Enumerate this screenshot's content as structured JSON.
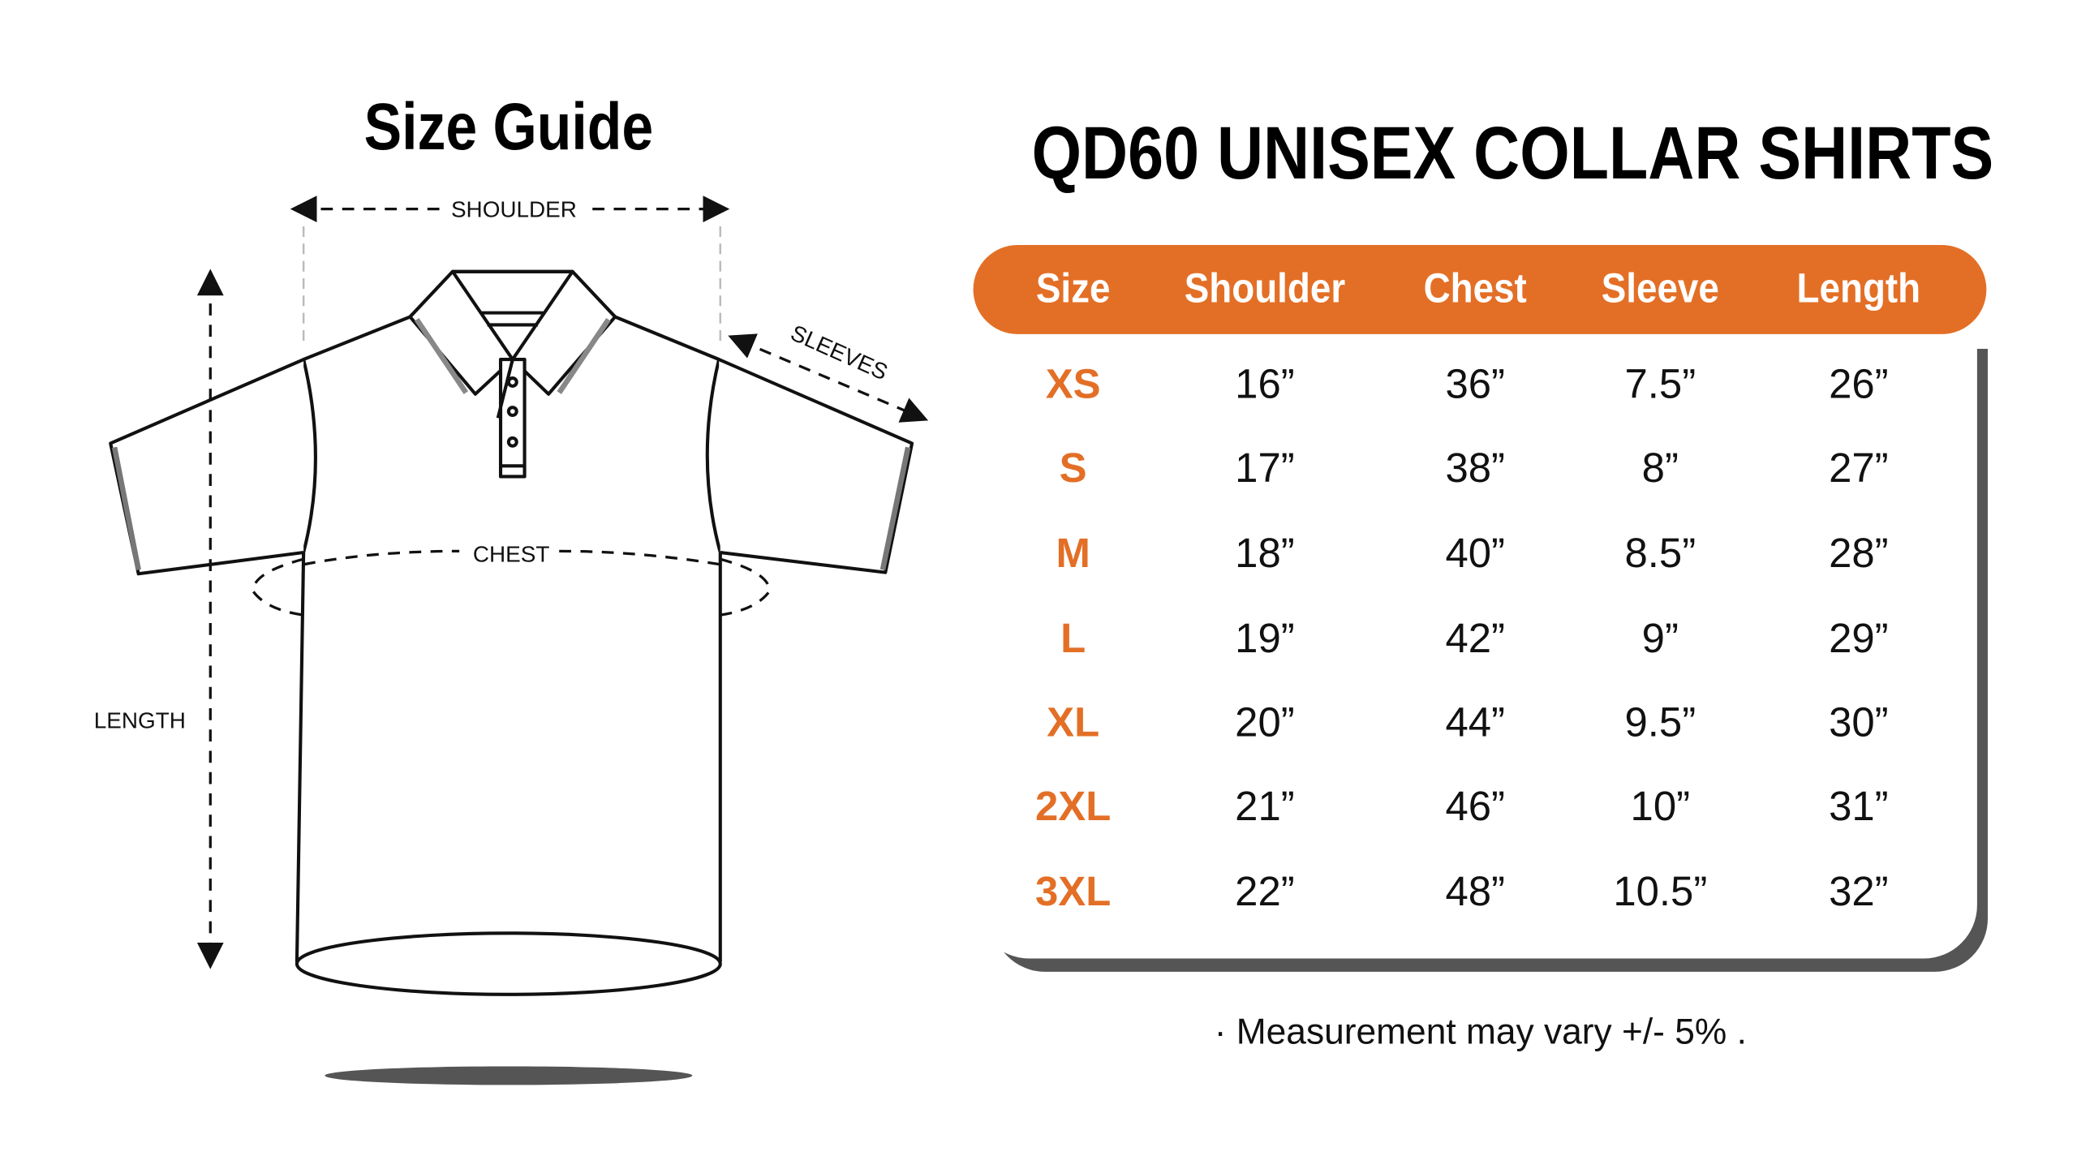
{
  "guide_title": "Size Guide",
  "product_title": "QD60 UNISEX COLLAR SHIRTS",
  "diagram_labels": {
    "shoulder": "SHOULDER",
    "sleeves": "SLEEVES",
    "chest": "CHEST",
    "length": "LENGTH"
  },
  "accent_color": "#E36F26",
  "table": {
    "headers": [
      "Size",
      "Shoulder",
      "Chest",
      "Sleeve",
      "Length"
    ],
    "rows": [
      [
        "XS",
        "16”",
        "36”",
        "7.5”",
        "26”"
      ],
      [
        "S",
        "17”",
        "38”",
        "8”",
        "27”"
      ],
      [
        "M",
        "18”",
        "40”",
        "8.5”",
        "28”"
      ],
      [
        "L",
        "19”",
        "42”",
        "9”",
        "29”"
      ],
      [
        "XL",
        "20”",
        "44”",
        "9.5”",
        "30”"
      ],
      [
        "2XL",
        "21”",
        "46”",
        "10”",
        "31”"
      ],
      [
        "3XL",
        "22”",
        "48”",
        "10.5”",
        "32”"
      ]
    ]
  },
  "note": "· Measurement may vary +/- 5% ."
}
